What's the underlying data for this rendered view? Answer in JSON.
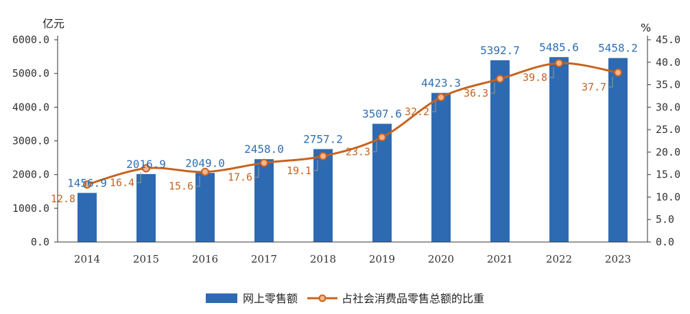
{
  "chart_data": {
    "type": "bar",
    "categories": [
      "2014",
      "2015",
      "2016",
      "2017",
      "2018",
      "2019",
      "2020",
      "2021",
      "2022",
      "2023"
    ],
    "series": [
      {
        "name": "网上零售额",
        "type": "bar",
        "axis": "left",
        "values": [
          1456.9,
          2016.9,
          2049.0,
          2458.0,
          2757.2,
          3507.6,
          4423.3,
          5392.7,
          5485.6,
          5458.2
        ],
        "labels": [
          "1456.9",
          "2016.9",
          "2049.0",
          "2458.0",
          "2757.2",
          "3507.6",
          "4423.3",
          "5392.7",
          "5485.6",
          "5458.2"
        ],
        "color": "#2e6ab1"
      },
      {
        "name": "占社会消费品零售总额的比重",
        "type": "line",
        "axis": "right",
        "values": [
          12.8,
          16.4,
          15.6,
          17.6,
          19.1,
          23.3,
          32.2,
          36.3,
          39.8,
          37.7
        ],
        "labels": [
          "12.8",
          "16.4",
          "15.6",
          "17.6",
          "19.1",
          "23.3",
          "32.2",
          "36.3",
          "39.8",
          "37.7"
        ],
        "color": "#c8621c"
      }
    ],
    "y_left": {
      "unit": "亿元",
      "ylim": [
        0,
        6000
      ],
      "ticks": [
        "0.0",
        "1000.0",
        "2000.0",
        "3000.0",
        "4000.0",
        "5000.0",
        "6000.0"
      ]
    },
    "y_right": {
      "unit": "%",
      "ylim": [
        0,
        45
      ],
      "ticks": [
        "0.0",
        "5.0",
        "10.0",
        "15.0",
        "20.0",
        "25.0",
        "30.0",
        "35.0",
        "40.0",
        "45.0"
      ]
    },
    "grid": false,
    "legend_position": "bottom"
  }
}
